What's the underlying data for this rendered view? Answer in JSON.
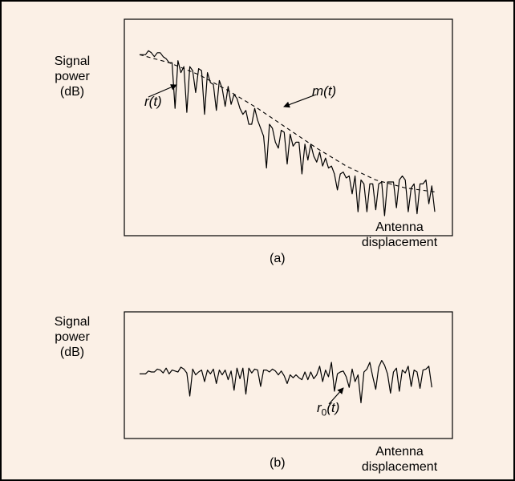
{
  "chart_data": [
    {
      "type": "line",
      "panel_label": "(a)",
      "ylabel": [
        "Signal",
        "power",
        "(dB)"
      ],
      "xlabel": [
        "Antenna",
        "displacement"
      ],
      "xlim": [
        0,
        100
      ],
      "ylim": [
        0,
        100
      ],
      "grid": false,
      "series": [
        {
          "name": "r(t)",
          "style": "solid",
          "x": [
            0,
            2,
            3,
            4,
            5,
            6,
            7,
            8,
            9,
            10,
            11,
            12,
            13,
            14,
            15,
            16,
            17,
            18,
            19,
            20,
            21,
            22,
            23,
            24,
            25,
            26,
            27,
            28,
            29,
            30,
            31,
            32,
            33,
            34,
            35,
            36,
            37,
            38,
            39,
            40,
            41,
            42,
            43,
            44,
            45,
            46,
            47,
            48,
            49,
            50,
            51,
            52,
            53,
            54,
            55,
            56,
            57,
            58,
            59,
            60,
            61,
            62,
            63,
            64,
            65,
            66,
            67,
            68,
            69,
            70,
            71,
            72,
            73,
            74,
            75,
            76,
            77,
            78,
            79,
            80,
            81,
            82,
            83,
            84,
            85,
            86,
            87,
            88,
            89,
            90,
            91,
            92,
            93,
            94,
            95,
            96,
            97,
            98,
            99,
            100
          ],
          "y": [
            87,
            87,
            89,
            88,
            86,
            88,
            88,
            86,
            85,
            83,
            83,
            60,
            84,
            78,
            81,
            58,
            81,
            79,
            68,
            80,
            79,
            57,
            78,
            73,
            72,
            59,
            74,
            70,
            61,
            71,
            62,
            67,
            65,
            60,
            57,
            59,
            52,
            52,
            60,
            54,
            50,
            46,
            30,
            52,
            50,
            43,
            40,
            49,
            48,
            32,
            47,
            41,
            43,
            43,
            27,
            42,
            34,
            42,
            36,
            33,
            38,
            31,
            35,
            30,
            31,
            27,
            19,
            27,
            28,
            25,
            26,
            17,
            26,
            8,
            24,
            22,
            8,
            22,
            22,
            9,
            22,
            23,
            6,
            23,
            23,
            23,
            10,
            24,
            26,
            24,
            8,
            20,
            22,
            7,
            22,
            22,
            24,
            12,
            21,
            8
          ]
        },
        {
          "name": "m(t)",
          "style": "dashed",
          "x": [
            0,
            10,
            20,
            30,
            40,
            50,
            60,
            70,
            80,
            90,
            100
          ],
          "y": [
            87,
            83,
            77,
            69,
            60,
            50,
            40,
            31,
            24,
            20,
            18
          ]
        }
      ],
      "annotations": [
        {
          "text": "r(t)",
          "points_to_x": 16.5
        },
        {
          "text": "m(t)",
          "points_to_x": 48
        }
      ]
    },
    {
      "type": "line",
      "panel_label": "(b)",
      "ylabel": [
        "Signal",
        "power",
        "(dB)"
      ],
      "xlabel": [
        "Antenna",
        "displacement"
      ],
      "xlim": [
        0,
        100
      ],
      "ylim": [
        0,
        100
      ],
      "grid": false,
      "series": [
        {
          "name": "r0(t)",
          "style": "solid",
          "x": [
            0,
            2,
            3,
            4,
            5,
            6,
            7,
            8,
            9,
            10,
            11,
            12,
            13,
            14,
            15,
            16,
            17,
            18,
            19,
            20,
            21,
            22,
            23,
            24,
            25,
            26,
            27,
            28,
            29,
            30,
            31,
            32,
            33,
            34,
            35,
            36,
            37,
            38,
            39,
            40,
            41,
            42,
            43,
            44,
            45,
            46,
            47,
            48,
            49,
            50,
            51,
            52,
            53,
            54,
            55,
            56,
            57,
            58,
            59,
            60,
            61,
            62,
            63,
            64,
            65,
            66,
            67,
            68,
            69,
            70,
            71,
            72,
            73,
            74,
            75,
            76,
            77,
            78,
            79,
            80,
            81,
            82,
            83,
            84,
            85,
            86,
            87,
            88,
            89,
            90,
            91,
            92,
            93,
            94,
            95,
            96,
            97,
            98,
            99
          ],
          "y": [
            48,
            48,
            51,
            50,
            50,
            53,
            52,
            49,
            54,
            48,
            52,
            51,
            50,
            55,
            53,
            49,
            25,
            53,
            47,
            50,
            52,
            40,
            52,
            48,
            53,
            38,
            52,
            47,
            52,
            42,
            51,
            31,
            54,
            43,
            54,
            27,
            54,
            49,
            53,
            52,
            35,
            52,
            52,
            50,
            53,
            51,
            47,
            51,
            46,
            38,
            47,
            44,
            47,
            44,
            42,
            50,
            42,
            50,
            43,
            47,
            56,
            40,
            52,
            45,
            60,
            30,
            48,
            50,
            51,
            45,
            34,
            53,
            40,
            47,
            18,
            50,
            53,
            60,
            45,
            32,
            55,
            62,
            57,
            48,
            28,
            50,
            54,
            30,
            52,
            49,
            56,
            35,
            52,
            50,
            33,
            52,
            53,
            56,
            34
          ]
        }
      ],
      "annotations": [
        {
          "text": "r",
          "subscript": "0",
          "suffix": "(t)",
          "points_to_x": 68.5
        }
      ]
    }
  ]
}
